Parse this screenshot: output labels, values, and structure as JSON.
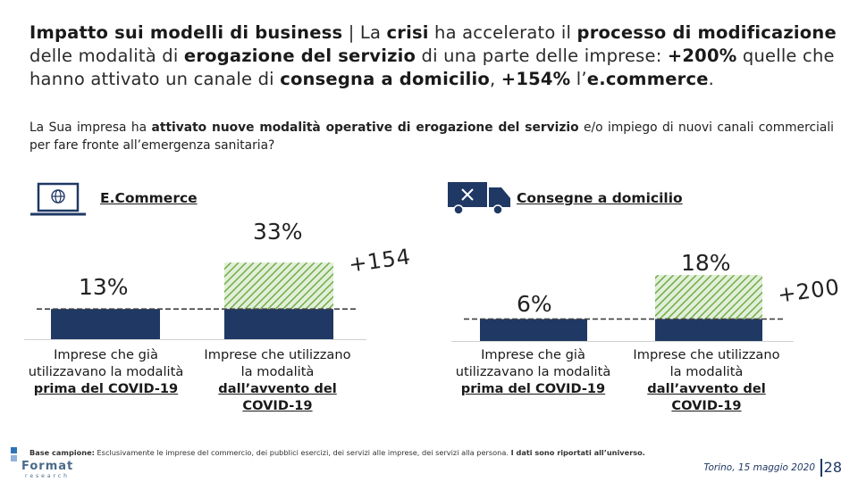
{
  "title": {
    "p1": "Impatto sui modelli di business",
    "p2": " | La ",
    "p3": "crisi",
    "p4": " ha accelerato il ",
    "p5": "processo di modificazione",
    "p6": " delle modalità di ",
    "p7": "erogazione del servizio",
    "p8": " di una parte delle imprese: ",
    "p9": "+200%",
    "p10": " quelle che hanno attivato un canale di ",
    "p11": "consegna a domicilio",
    "p12": ", ",
    "p13": "+154%",
    "p14": " l’",
    "p15": "e.commerce",
    "p16": "."
  },
  "question": {
    "q1": "La Sua impresa ha ",
    "q2": "attivato nuove modalità operative di erogazione del servizio",
    "q3": " e/o impiego di nuovi canali commerciali per fare fronte all’emergenza sanitaria?"
  },
  "ecommerce": {
    "label": "E.Commerce",
    "icon": "laptop-globe-icon",
    "pct_before": "13%",
    "pct_after": "33%",
    "delta": "+154",
    "label_before_a": "Imprese che già utilizzavano la modalità ",
    "label_before_b": "prima del COVID-19",
    "label_after_a": "Imprese che utilizzano la modalità ",
    "label_after_b": "dall’avvento del COVID-19"
  },
  "consegne": {
    "label": "Consegne a domicilio",
    "icon": "delivery-truck-icon",
    "pct_before": "6%",
    "pct_after": "18%",
    "delta": "+200",
    "label_before_a": "Imprese che già utilizzavano la modalità ",
    "label_before_b": "prima del COVID-19",
    "label_after_a": "Imprese che utilizzano la modalità ",
    "label_after_b": "dall’avvento del COVID-19"
  },
  "footnote": {
    "a": "Base campione:",
    "b": " Esclusivamente le imprese del commercio, dei pubblici esercizi, dei servizi alle imprese, dei servizi alla persona. ",
    "c": "I dati sono riportati all’universo."
  },
  "footer": {
    "place_date": "Torino, 15 maggio 2020",
    "page": "28",
    "logo": "Format",
    "logo_sub": "research"
  },
  "colors": {
    "bar_dark": "#1f3864",
    "hatch": "#70ad47",
    "hatch_bg": "#e2efd9",
    "dashed": "#404040"
  },
  "chart_data": [
    {
      "type": "bar",
      "title": "E.Commerce",
      "categories": [
        "Imprese che già utilizzavano la modalità prima del COVID-19",
        "Imprese che utilizzano la modalità dall’avvento del COVID-19"
      ],
      "values": [
        13,
        33
      ],
      "unit": "%",
      "annotation": "+154"
    },
    {
      "type": "bar",
      "title": "Consegne a domicilio",
      "categories": [
        "Imprese che già utilizzavano la modalità prima del COVID-19",
        "Imprese che utilizzano la modalità dall’avvento del COVID-19"
      ],
      "values": [
        6,
        18
      ],
      "unit": "%",
      "annotation": "+200"
    }
  ]
}
